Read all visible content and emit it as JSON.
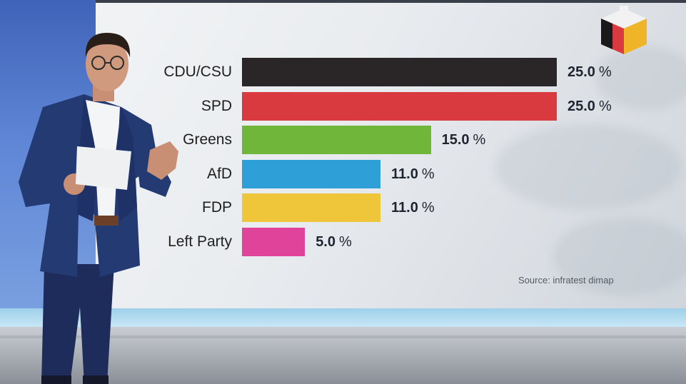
{
  "chart_data": {
    "type": "bar",
    "orientation": "horizontal",
    "categories": [
      "CDU/CSU",
      "SPD",
      "Greens",
      "AfD",
      "FDP",
      "Left Party"
    ],
    "values": [
      25.0,
      25.0,
      15.0,
      11.0,
      11.0,
      5.0
    ],
    "value_labels": [
      "25.0",
      "25.0",
      "15.0",
      "11.0",
      "11.0",
      "5.0"
    ],
    "unit": "%",
    "colors": [
      "#2a2526",
      "#d93a3f",
      "#6fb63a",
      "#2f9fd8",
      "#efc63a",
      "#e0449a"
    ],
    "xlim": [
      0,
      25
    ],
    "grid": false,
    "legend": "none"
  },
  "source": "Source: infratest dimap",
  "logo": {
    "icon": "ard-cube-logo-icon",
    "colors": [
      "#1a1a1a",
      "#d93a3f",
      "#f0b429"
    ]
  }
}
